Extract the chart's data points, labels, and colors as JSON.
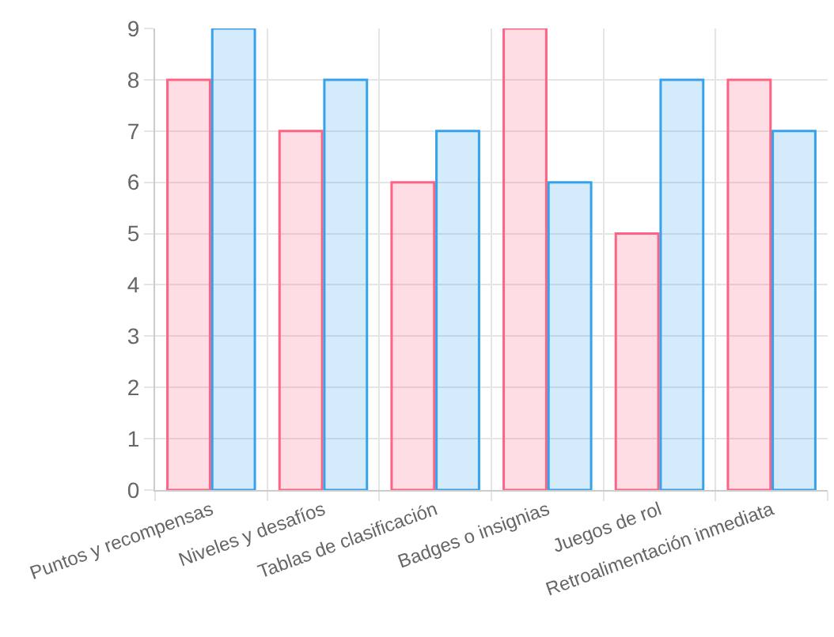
{
  "chart_data": {
    "type": "bar",
    "categories": [
      "Puntos y recompensas",
      "Niveles y desafíos",
      "Tablas de clasificación",
      "Badges o insignias",
      "Juegos de rol",
      "Retroalimentación inmediata"
    ],
    "series": [
      {
        "color": "#ff6384",
        "values": [
          8,
          7,
          6,
          9,
          5,
          8
        ]
      },
      {
        "color": "#36a2eb",
        "values": [
          9,
          8,
          7,
          6,
          8,
          7
        ]
      }
    ],
    "ylim": [
      0,
      9
    ],
    "yticks": [
      0,
      1,
      2,
      3,
      4,
      5,
      6,
      7,
      8,
      9
    ],
    "grid": true
  }
}
